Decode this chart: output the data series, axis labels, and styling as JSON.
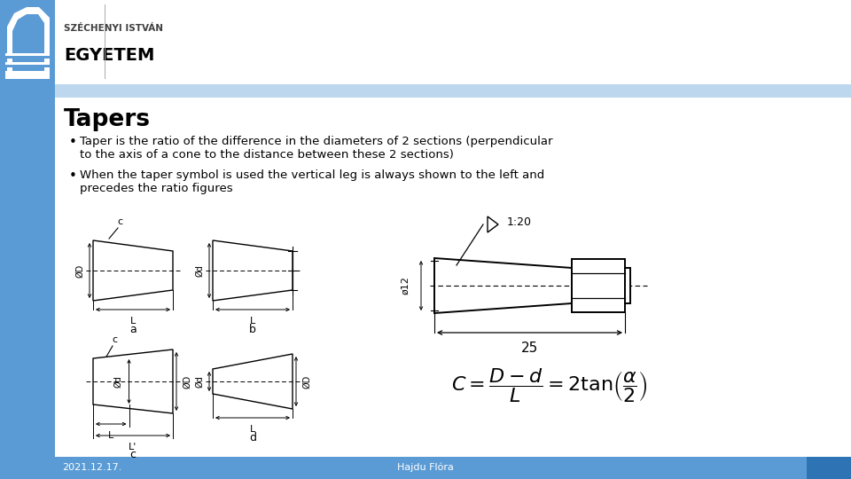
{
  "title": "Tapers",
  "bullet1_line1": "Taper is the ratio of the difference in the diameters of 2 sections (perpendicular",
  "bullet1_line2": "to the axis of a cone to the distance between these 2 sections)",
  "bullet2_line1": "When the taper symbol is used the vertical leg is always shown to the left and",
  "bullet2_line2": "precedes the ratio figures",
  "date": "2021.12.17.",
  "author": "Hajdu Flóra",
  "sidebar_blue": "#5b9bd5",
  "header_light_blue": "#bdd7ee",
  "header_dark_blue": "#2e74b5",
  "footer_blue": "#5b9bd5",
  "title_color": "#000000",
  "text_color": "#000000",
  "bg_color": "#ffffff"
}
